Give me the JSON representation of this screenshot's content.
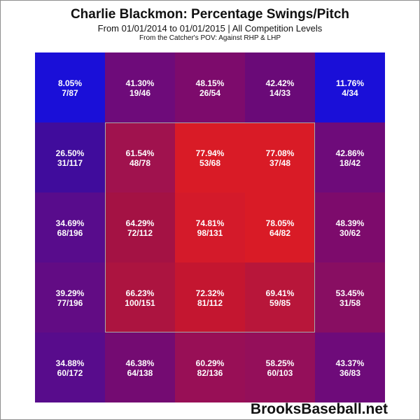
{
  "header": {
    "title": "Charlie Blackmon: Percentage Swings/Pitch",
    "subtitle": "From 01/01/2014 to 01/01/2015 | All Competition Levels",
    "subtitle2": "From the Catcher's POV:  Against RHP & LHP"
  },
  "brand": "BrooksBaseball.net",
  "chart_data": {
    "type": "heatmap",
    "title": "Charlie Blackmon: Percentage Swings/Pitch",
    "rows": 5,
    "cols": 5,
    "strike_zone": "center 3x3",
    "colors": {
      "low": "#0000ff",
      "high": "#ff0000"
    },
    "cells": [
      [
        {
          "pct": "8.05%",
          "frac": "7/87",
          "value": 8.05,
          "color": "#1a0fd8"
        },
        {
          "pct": "41.30%",
          "frac": "19/46",
          "value": 41.3,
          "color": "#6e0b7a"
        },
        {
          "pct": "48.15%",
          "frac": "26/54",
          "value": 48.15,
          "color": "#7d0b6c"
        },
        {
          "pct": "42.42%",
          "frac": "14/33",
          "value": 42.42,
          "color": "#6a0a78"
        },
        {
          "pct": "11.76%",
          "frac": "4/34",
          "value": 11.76,
          "color": "#1a0fd8"
        }
      ],
      [
        {
          "pct": "26.50%",
          "frac": "31/117",
          "value": 26.5,
          "color": "#400c9c"
        },
        {
          "pct": "61.54%",
          "frac": "48/78",
          "value": 61.54,
          "color": "#a0124e"
        },
        {
          "pct": "77.94%",
          "frac": "53/68",
          "value": 77.94,
          "color": "#d91b26"
        },
        {
          "pct": "77.08%",
          "frac": "37/48",
          "value": 77.08,
          "color": "#d91b26"
        },
        {
          "pct": "42.86%",
          "frac": "18/42",
          "value": 42.86,
          "color": "#6e0b7a"
        }
      ],
      [
        {
          "pct": "34.69%",
          "frac": "68/196",
          "value": 34.69,
          "color": "#580c8c"
        },
        {
          "pct": "64.29%",
          "frac": "72/112",
          "value": 64.29,
          "color": "#a41244"
        },
        {
          "pct": "74.81%",
          "frac": "98/131",
          "value": 74.81,
          "color": "#d41a2a"
        },
        {
          "pct": "78.05%",
          "frac": "64/82",
          "value": 78.05,
          "color": "#d91b26"
        },
        {
          "pct": "48.39%",
          "frac": "30/62",
          "value": 48.39,
          "color": "#7d0b6c"
        }
      ],
      [
        {
          "pct": "39.29%",
          "frac": "77/196",
          "value": 39.29,
          "color": "#620c84"
        },
        {
          "pct": "66.23%",
          "frac": "100/151",
          "value": 66.23,
          "color": "#ac1440"
        },
        {
          "pct": "72.32%",
          "frac": "81/112",
          "value": 72.32,
          "color": "#c41630"
        },
        {
          "pct": "69.41%",
          "frac": "59/85",
          "value": 69.41,
          "color": "#b8163a"
        },
        {
          "pct": "53.45%",
          "frac": "31/58",
          "value": 53.45,
          "color": "#880e62"
        }
      ],
      [
        {
          "pct": "34.88%",
          "frac": "60/172",
          "value": 34.88,
          "color": "#580c8c"
        },
        {
          "pct": "46.38%",
          "frac": "64/138",
          "value": 46.38,
          "color": "#740b72"
        },
        {
          "pct": "60.29%",
          "frac": "82/136",
          "value": 60.29,
          "color": "#980f56"
        },
        {
          "pct": "58.25%",
          "frac": "60/103",
          "value": 58.25,
          "color": "#940f5a"
        },
        {
          "pct": "43.37%",
          "frac": "36/83",
          "value": 43.37,
          "color": "#6e0b7a"
        }
      ]
    ]
  }
}
